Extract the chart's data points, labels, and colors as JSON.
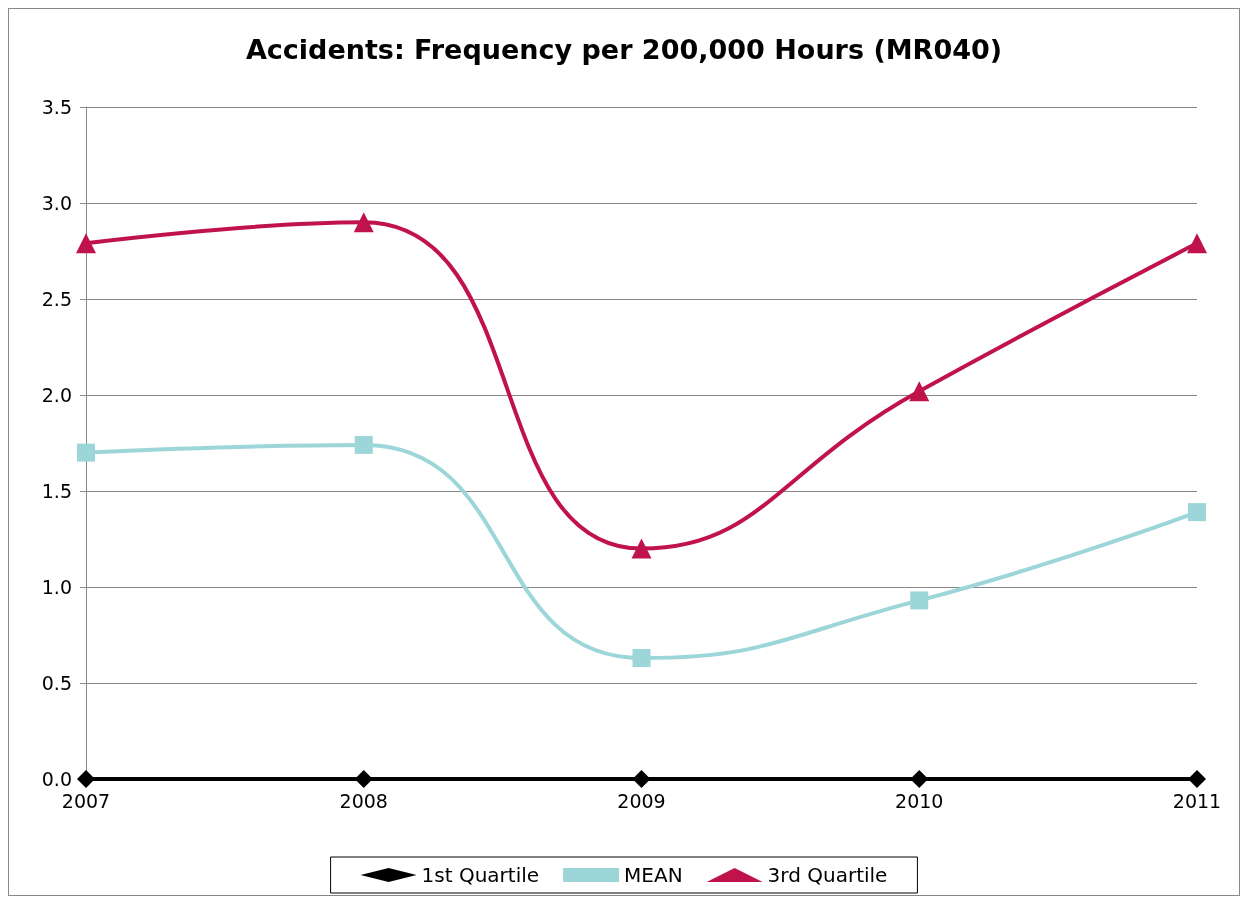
{
  "chart_data": {
    "type": "line",
    "title": "Accidents: Frequency per 200,000 Hours (MR040)",
    "categories": [
      "2007",
      "2008",
      "2009",
      "2010",
      "2011"
    ],
    "series": [
      {
        "name": "1st Quartile",
        "color": "#000000",
        "marker": "diamond",
        "values": [
          0,
          0,
          0,
          0,
          0
        ]
      },
      {
        "name": "MEAN",
        "color": "#9dd6d8",
        "marker": "square",
        "values": [
          1.7,
          1.74,
          0.63,
          0.93,
          1.39
        ]
      },
      {
        "name": "3rd Quartile",
        "color": "#c0134c",
        "marker": "triangle",
        "values": [
          2.79,
          2.9,
          1.2,
          2.02,
          2.79
        ]
      }
    ],
    "ylim": [
      0,
      3.5
    ],
    "yticks": [
      {
        "value": 0,
        "label": "0.0"
      },
      {
        "value": 0.5,
        "label": "0.5"
      },
      {
        "value": 1,
        "label": "1.0"
      },
      {
        "value": 1.5,
        "label": "1.5"
      },
      {
        "value": 2,
        "label": "2.0"
      },
      {
        "value": 2.5,
        "label": "2.5"
      },
      {
        "value": 3,
        "label": "3.0"
      },
      {
        "value": 3.5,
        "label": "3.5"
      }
    ],
    "grid": "y",
    "legend": "bottom",
    "line_style": "solid"
  }
}
